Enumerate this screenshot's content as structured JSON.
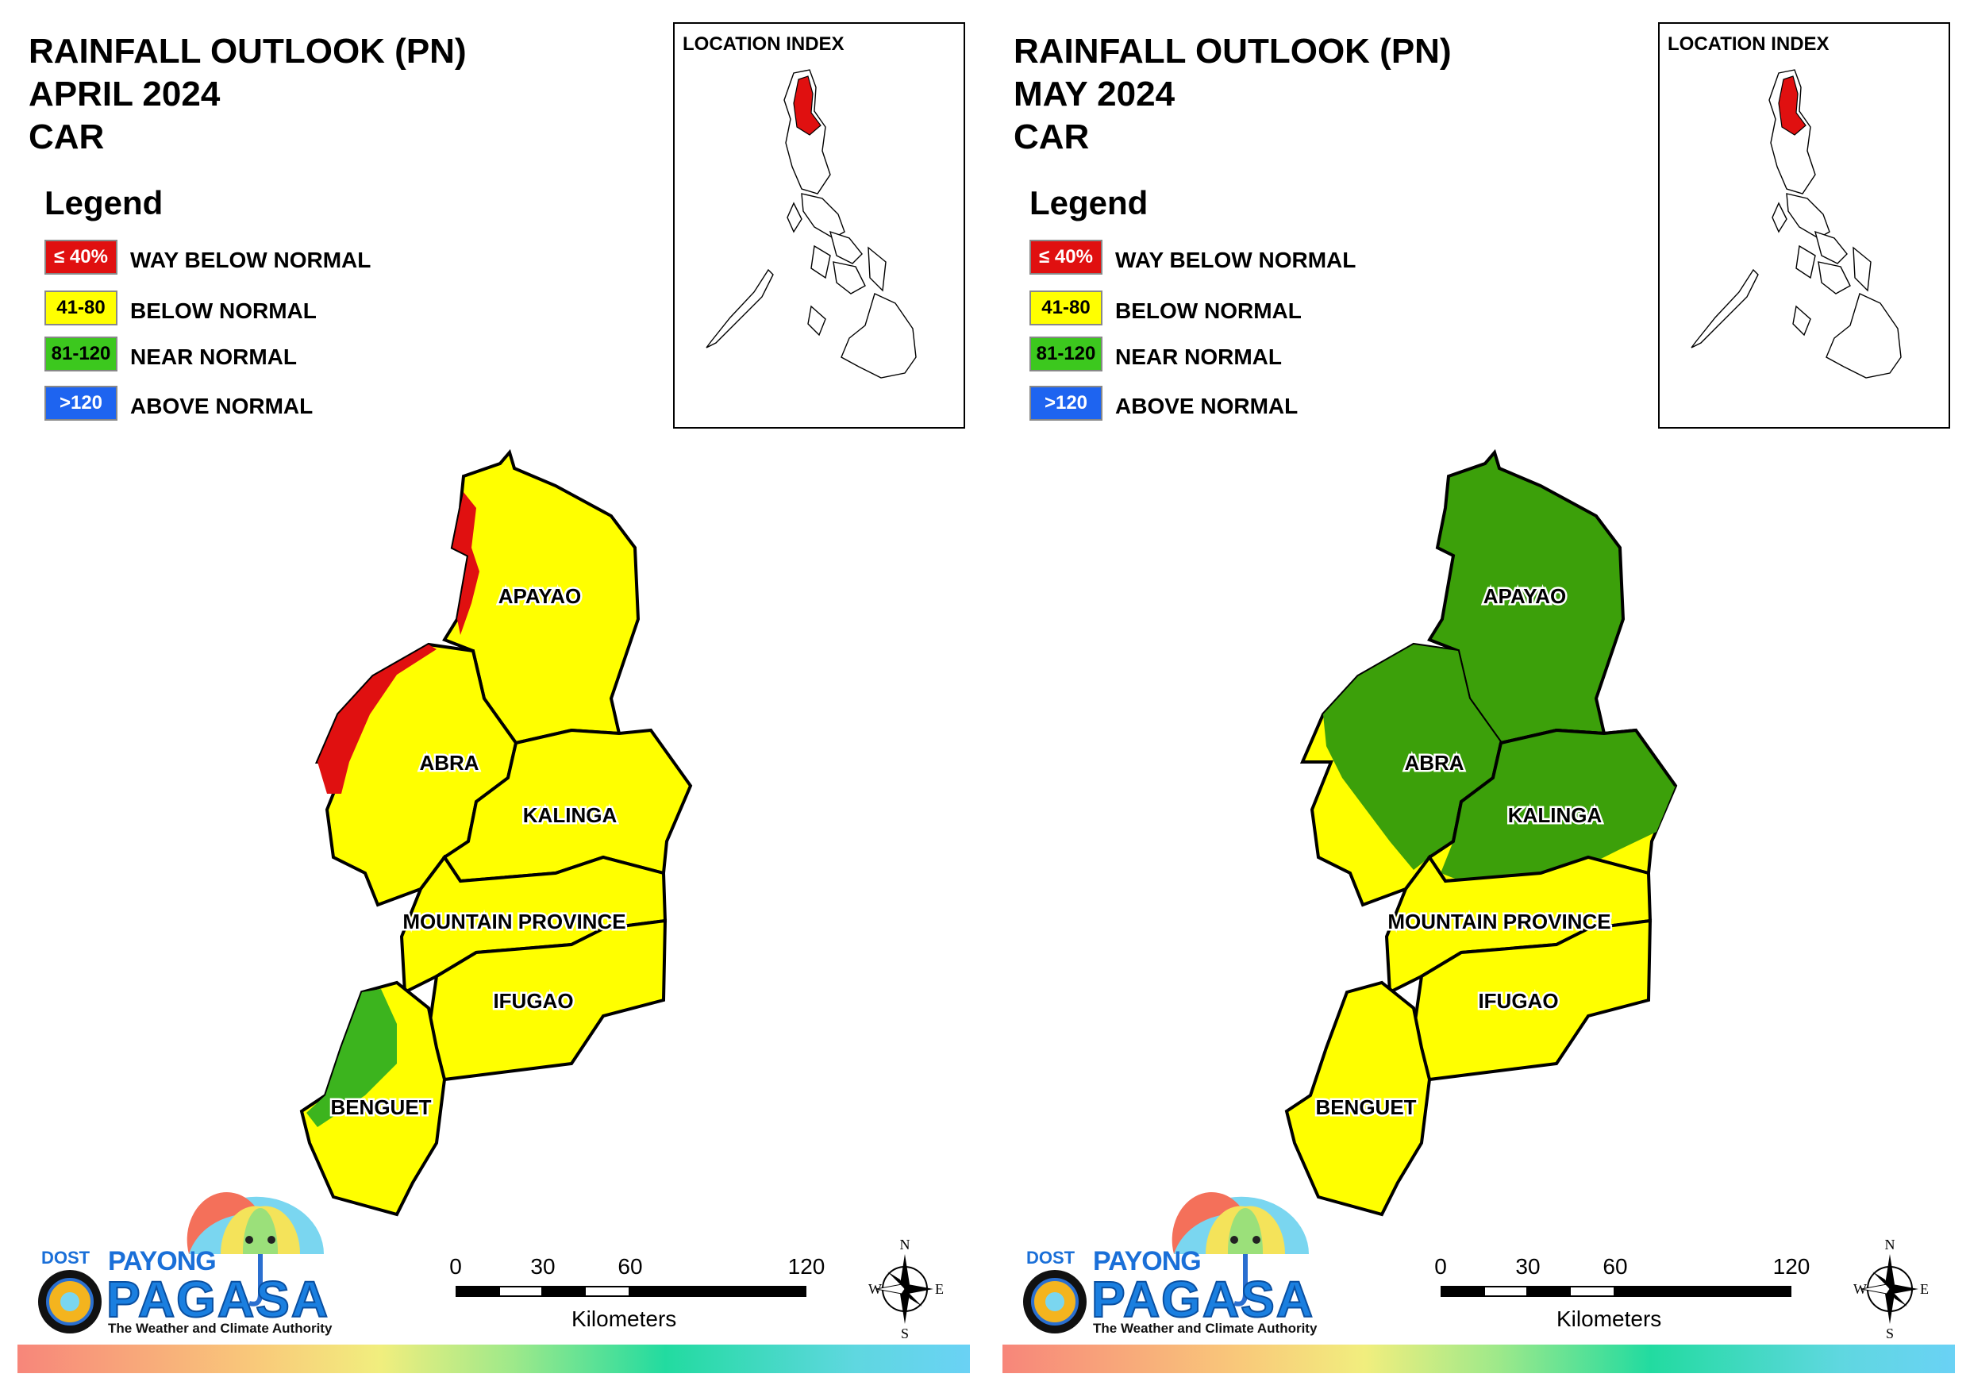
{
  "panels": [
    {
      "title": [
        "RAINFALL OUTLOOK (PN)",
        "APRIL 2024",
        "CAR"
      ],
      "legend_title": "Legend",
      "legend": [
        {
          "code": "≤ 40%",
          "label": "WAY BELOW NORMAL",
          "color": "#e01010"
        },
        {
          "code": "41-80",
          "label": "BELOW NORMAL",
          "color": "#ffff00"
        },
        {
          "code": "81-120",
          "label": "NEAR NORMAL",
          "color": "#3cb41e"
        },
        {
          "code": ">120",
          "label": "ABOVE NORMAL",
          "color": "#1e64f0"
        }
      ],
      "inset_title": "LOCATION INDEX",
      "provinces": [
        "APAYAO",
        "ABRA",
        "KALINGA",
        "MOUNTAIN PROVINCE",
        "IFUGAO",
        "BENGUET"
      ],
      "scale": {
        "ticks": [
          "0",
          "30",
          "60",
          "120"
        ],
        "unit": "Kilometers"
      },
      "compass": {
        "n": "N",
        "e": "E",
        "s": "S",
        "w": "W"
      },
      "logo": {
        "dost": "DOST",
        "payong": "PAYONG",
        "pagasa": "PAGASA",
        "tagline": "The Weather and Climate Authority"
      }
    },
    {
      "title": [
        "RAINFALL OUTLOOK (PN)",
        "MAY 2024",
        "CAR"
      ],
      "legend_title": "Legend",
      "legend": [
        {
          "code": "≤ 40%",
          "label": "WAY BELOW NORMAL",
          "color": "#e01010"
        },
        {
          "code": "41-80",
          "label": "BELOW NORMAL",
          "color": "#ffff00"
        },
        {
          "code": "81-120",
          "label": "NEAR NORMAL",
          "color": "#3cb41e"
        },
        {
          "code": ">120",
          "label": "ABOVE NORMAL",
          "color": "#1e64f0"
        }
      ],
      "inset_title": "LOCATION INDEX",
      "provinces": [
        "APAYAO",
        "ABRA",
        "KALINGA",
        "MOUNTAIN PROVINCE",
        "IFUGAO",
        "BENGUET"
      ],
      "scale": {
        "ticks": [
          "0",
          "30",
          "60",
          "120"
        ],
        "unit": "Kilometers"
      },
      "compass": {
        "n": "N",
        "e": "E",
        "s": "S",
        "w": "W"
      },
      "logo": {
        "dost": "DOST",
        "payong": "PAYONG",
        "pagasa": "PAGASA",
        "tagline": "The Weather and Climate Authority"
      }
    }
  ]
}
